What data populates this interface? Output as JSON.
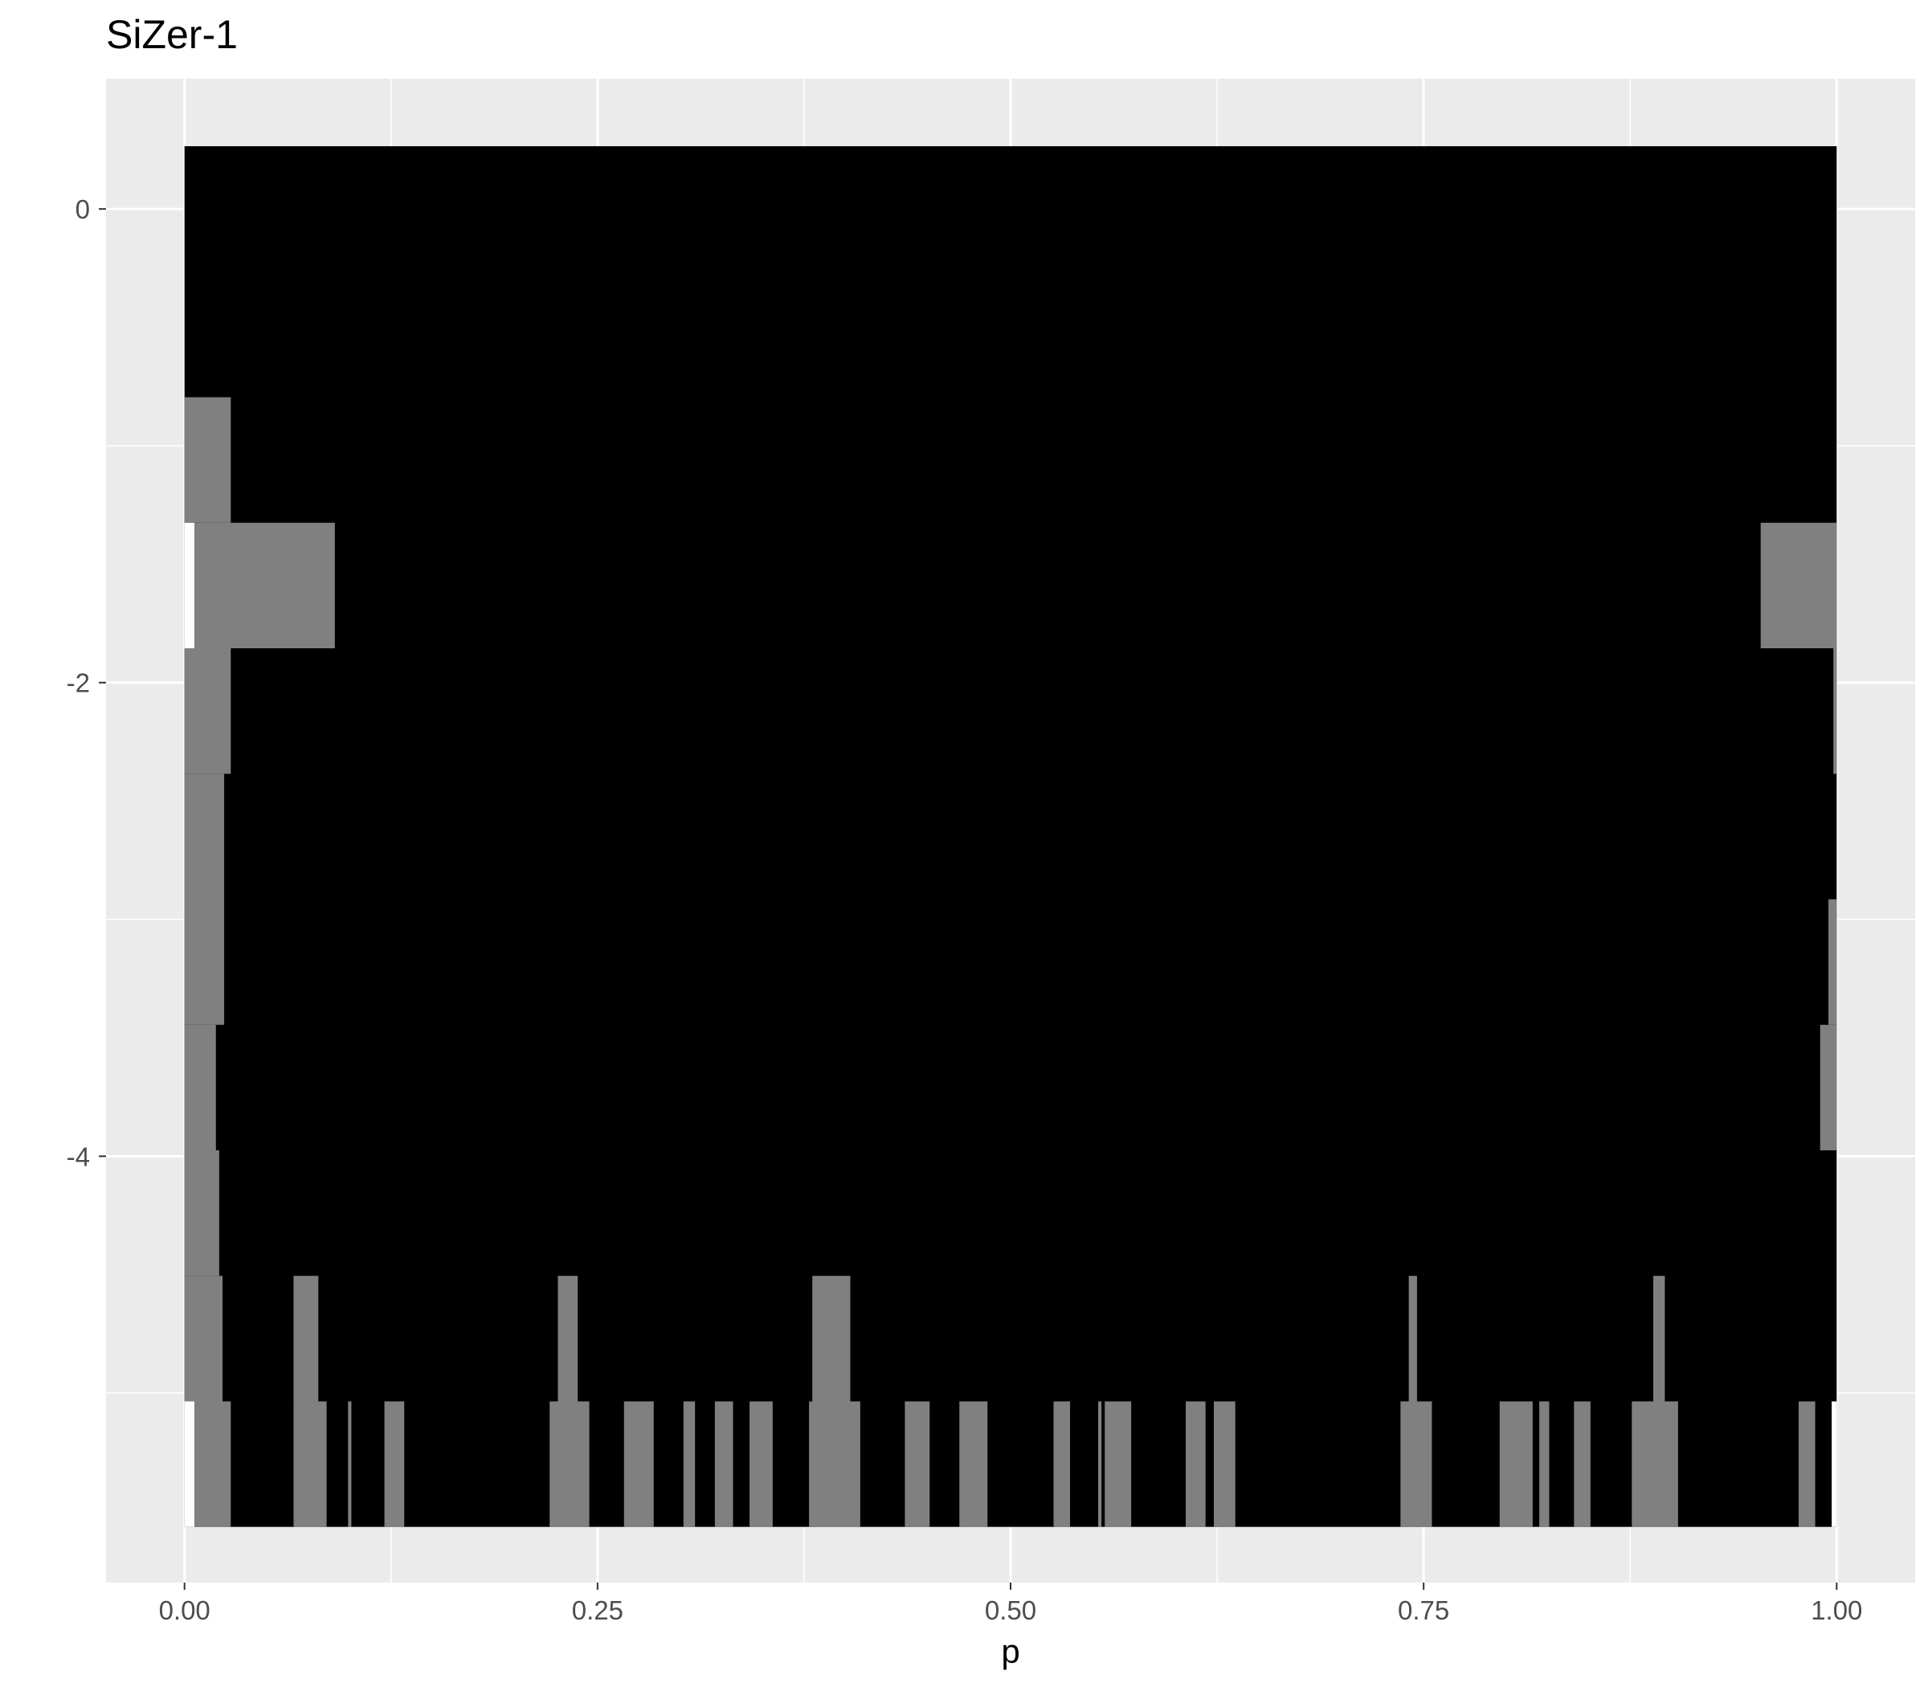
{
  "chart_data": {
    "type": "heatmap",
    "title": "SiZer-1",
    "xlabel": "p",
    "ylabel": "",
    "xlim": [
      -0.0475,
      1.0475
    ],
    "ylim": [
      -5.8,
      0.55
    ],
    "x_ticks": [
      0.0,
      0.25,
      0.5,
      0.75,
      1.0
    ],
    "x_tick_labels": [
      "0.00",
      "0.25",
      "0.50",
      "0.75",
      "1.00"
    ],
    "y_ticks": [
      0,
      -2,
      -4
    ],
    "y_tick_labels": [
      "0",
      "-2",
      "-4"
    ],
    "grid": true,
    "legend": "none",
    "colors": {
      "panel": "#ebebeb",
      "grid": "#ffffff",
      "significant_decrease": "#000000",
      "not_significant": "#808080",
      "significant_increase": "#ffffff"
    },
    "row_height": 0.53,
    "background_cell": {
      "x0": 0.0,
      "x1": 1.0,
      "y0": -5.565,
      "y1": 0.265,
      "state": "significant_decrease"
    },
    "cells": [
      {
        "x0": 0.0,
        "x1": 0.028,
        "y": -1.06,
        "state": "not_significant"
      },
      {
        "x0": 0.0,
        "x1": 0.006,
        "y": -1.59,
        "state": "significant_increase"
      },
      {
        "x0": 0.006,
        "x1": 0.091,
        "y": -1.59,
        "state": "not_significant"
      },
      {
        "x0": 0.954,
        "x1": 1.0,
        "y": -1.59,
        "state": "not_significant"
      },
      {
        "x0": 0.0,
        "x1": 0.028,
        "y": -2.12,
        "state": "not_significant"
      },
      {
        "x0": 0.998,
        "x1": 1.0,
        "y": -2.12,
        "state": "not_significant"
      },
      {
        "x0": 0.0,
        "x1": 0.024,
        "y": -2.65,
        "state": "not_significant"
      },
      {
        "x0": 0.0,
        "x1": 0.024,
        "y": -3.18,
        "state": "not_significant"
      },
      {
        "x0": 0.995,
        "x1": 1.0,
        "y": -3.18,
        "state": "not_significant"
      },
      {
        "x0": 0.0,
        "x1": 0.019,
        "y": -3.71,
        "state": "not_significant"
      },
      {
        "x0": 0.99,
        "x1": 1.0,
        "y": -3.71,
        "state": "not_significant"
      },
      {
        "x0": 0.0,
        "x1": 0.021,
        "y": -4.24,
        "state": "not_significant"
      },
      {
        "x0": 0.0,
        "x1": 0.023,
        "y": -4.77,
        "state": "not_significant"
      },
      {
        "x0": 0.066,
        "x1": 0.081,
        "y": -4.77,
        "state": "not_significant"
      },
      {
        "x0": 0.226,
        "x1": 0.238,
        "y": -4.77,
        "state": "not_significant"
      },
      {
        "x0": 0.38,
        "x1": 0.403,
        "y": -4.77,
        "state": "not_significant"
      },
      {
        "x0": 0.741,
        "x1": 0.746,
        "y": -4.77,
        "state": "not_significant"
      },
      {
        "x0": 0.889,
        "x1": 0.896,
        "y": -4.77,
        "state": "not_significant"
      },
      {
        "x0": 0.0,
        "x1": 0.006,
        "y": -5.3,
        "state": "significant_increase"
      },
      {
        "x0": 0.006,
        "x1": 0.028,
        "y": -5.3,
        "state": "not_significant"
      },
      {
        "x0": 0.066,
        "x1": 0.086,
        "y": -5.3,
        "state": "not_significant"
      },
      {
        "x0": 0.099,
        "x1": 0.101,
        "y": -5.3,
        "state": "not_significant"
      },
      {
        "x0": 0.121,
        "x1": 0.133,
        "y": -5.3,
        "state": "not_significant"
      },
      {
        "x0": 0.221,
        "x1": 0.245,
        "y": -5.3,
        "state": "not_significant"
      },
      {
        "x0": 0.266,
        "x1": 0.284,
        "y": -5.3,
        "state": "not_significant"
      },
      {
        "x0": 0.302,
        "x1": 0.309,
        "y": -5.3,
        "state": "not_significant"
      },
      {
        "x0": 0.321,
        "x1": 0.332,
        "y": -5.3,
        "state": "not_significant"
      },
      {
        "x0": 0.342,
        "x1": 0.356,
        "y": -5.3,
        "state": "not_significant"
      },
      {
        "x0": 0.378,
        "x1": 0.409,
        "y": -5.3,
        "state": "not_significant"
      },
      {
        "x0": 0.436,
        "x1": 0.451,
        "y": -5.3,
        "state": "not_significant"
      },
      {
        "x0": 0.469,
        "x1": 0.486,
        "y": -5.3,
        "state": "not_significant"
      },
      {
        "x0": 0.526,
        "x1": 0.536,
        "y": -5.3,
        "state": "not_significant"
      },
      {
        "x0": 0.553,
        "x1": 0.555,
        "y": -5.3,
        "state": "not_significant"
      },
      {
        "x0": 0.557,
        "x1": 0.573,
        "y": -5.3,
        "state": "not_significant"
      },
      {
        "x0": 0.606,
        "x1": 0.618,
        "y": -5.3,
        "state": "not_significant"
      },
      {
        "x0": 0.623,
        "x1": 0.636,
        "y": -5.3,
        "state": "not_significant"
      },
      {
        "x0": 0.736,
        "x1": 0.755,
        "y": -5.3,
        "state": "not_significant"
      },
      {
        "x0": 0.796,
        "x1": 0.816,
        "y": -5.3,
        "state": "not_significant"
      },
      {
        "x0": 0.82,
        "x1": 0.826,
        "y": -5.3,
        "state": "not_significant"
      },
      {
        "x0": 0.841,
        "x1": 0.851,
        "y": -5.3,
        "state": "not_significant"
      },
      {
        "x0": 0.876,
        "x1": 0.904,
        "y": -5.3,
        "state": "not_significant"
      },
      {
        "x0": 0.977,
        "x1": 0.987,
        "y": -5.3,
        "state": "not_significant"
      },
      {
        "x0": 0.997,
        "x1": 1.0,
        "y": -5.3,
        "state": "significant_increase"
      }
    ]
  }
}
